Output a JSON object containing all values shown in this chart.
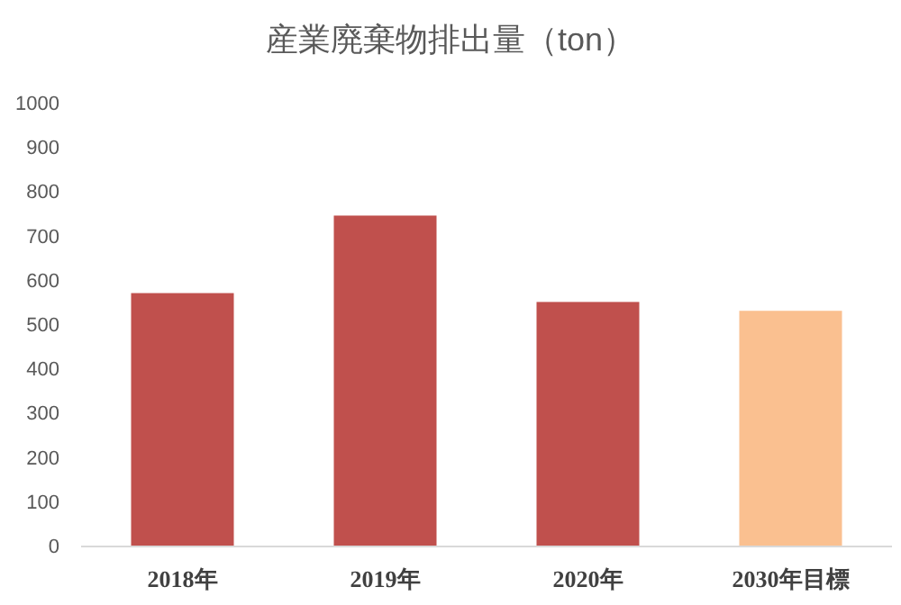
{
  "chart_data": {
    "type": "bar",
    "title": "産業廃棄物排出量（ton）",
    "categories": [
      "2018年",
      "2019年",
      "2020年",
      "2030年目標"
    ],
    "values": [
      570,
      745,
      550,
      530
    ],
    "colors": [
      "#c0504d",
      "#c0504d",
      "#c0504d",
      "#fac090"
    ],
    "ylim": [
      0,
      1000
    ],
    "yticks": [
      0,
      100,
      200,
      300,
      400,
      500,
      600,
      700,
      800,
      900,
      1000
    ],
    "grid": false
  }
}
